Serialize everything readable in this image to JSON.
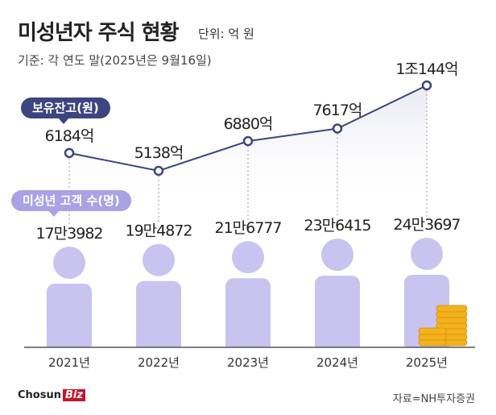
{
  "header": {
    "title": "미성년자 주식 현황",
    "unit": "단위: 억 원",
    "basis": "기준: 각 연도 말(2025년은 9월16일)"
  },
  "labels": {
    "holdings_series": "보유잔고(원)",
    "customers_series": "미성년 고객 수(명)"
  },
  "footer": {
    "logo_main": "Chosun",
    "logo_box": "Biz",
    "source": "자료=NH투자증권"
  },
  "colors": {
    "line": "#3d4580",
    "area": "#e8e9f2",
    "person": "#c9c3ef",
    "coin": "#f2b21b",
    "baseline": "#555555"
  },
  "chart_data": {
    "type": "line",
    "categories": [
      "2021년",
      "2022년",
      "2023년",
      "2024년",
      "2025년"
    ],
    "series": [
      {
        "name": "보유잔고(원)",
        "values": [
          6184,
          5138,
          6880,
          7617,
          10144
        ],
        "labels": [
          "6184억",
          "5138억",
          "6880억",
          "7617억",
          "1조144억"
        ]
      },
      {
        "name": "미성년 고객 수(명)",
        "values": [
          173982,
          194872,
          216777,
          236415,
          243697
        ],
        "labels": [
          "17만3982",
          "19만4872",
          "21만6777",
          "23만6415",
          "24만3697"
        ]
      }
    ],
    "ylabel": "",
    "xlabel": ""
  }
}
